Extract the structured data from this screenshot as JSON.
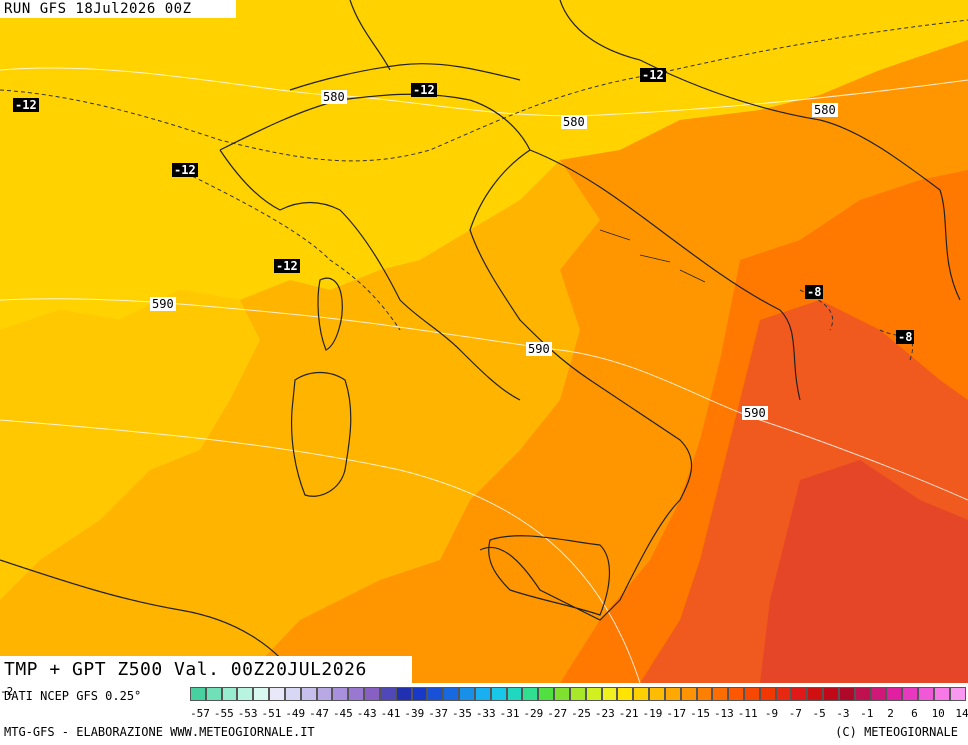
{
  "header": {
    "run_title": "RUN GFS 18Jul2026 00Z"
  },
  "product": {
    "title": "TMP + GPT Z500 Val. 00Z20JUL2026"
  },
  "map": {
    "isohypse_labels": [
      "580",
      "580",
      "580",
      "590",
      "590",
      "590"
    ],
    "temperature_labels": [
      "-12",
      "-12",
      "-12",
      "-12",
      "-12",
      "-8",
      "-8"
    ],
    "colors": {
      "cold_yellow": "#ffd200",
      "yellow_orange": "#ffb400",
      "orange": "#ff9600",
      "dark_orange": "#ff7800",
      "red_orange": "#f05a1e",
      "red": "#e64628",
      "coast": "#222222",
      "isohypse": "#ffffff"
    }
  },
  "footer": {
    "source": "DATI NCEP GFS 0.25°",
    "edge_left": "-2",
    "credit_left": "MTG-GFS - ELABORAZIONE WWW.METEOGIORNALE.IT",
    "credit_right": "(C) METEOGIORNALE",
    "scale_ticks": [
      "-57",
      "-55",
      "-53",
      "-51",
      "-49",
      "-47",
      "-45",
      "-43",
      "-41",
      "-39",
      "-37",
      "-35",
      "-33",
      "-31",
      "-29",
      "-27",
      "-25",
      "-23",
      "-21",
      "-19",
      "-17",
      "-15",
      "-13",
      "-11",
      "-9",
      "-7",
      "-5",
      "-3",
      "-1",
      "2",
      "6",
      "10",
      "14"
    ],
    "scale_colors": [
      "#48d1a0",
      "#70e0b8",
      "#98ecd0",
      "#b8f4e0",
      "#d8f8f0",
      "#e8e8f8",
      "#d8d8f4",
      "#c8c0ec",
      "#b8a8e4",
      "#a890dc",
      "#9878d0",
      "#8860c4",
      "#5048b8",
      "#2030b0",
      "#1838c8",
      "#1850d8",
      "#1868e0",
      "#1890e8",
      "#18b0f0",
      "#18c8e8",
      "#20d8c0",
      "#30e090",
      "#50e040",
      "#80e030",
      "#a8e828",
      "#d0f020",
      "#f0f020",
      "#ffe400",
      "#ffd000",
      "#ffbc00",
      "#ffa800",
      "#ff9400",
      "#ff8000",
      "#ff6c00",
      "#ff5800",
      "#f84800",
      "#f03800",
      "#e82810",
      "#e01818",
      "#d01010",
      "#c00818",
      "#b00828",
      "#c01050",
      "#d01878",
      "#e020a0",
      "#e838c0",
      "#f058d8",
      "#f878e8",
      "#f898f0"
    ]
  }
}
